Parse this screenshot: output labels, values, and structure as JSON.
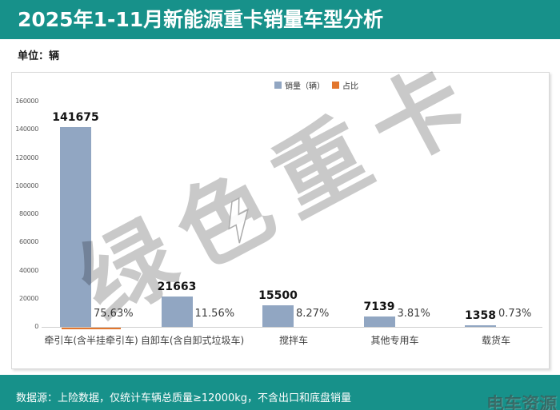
{
  "header": {
    "title": "2025年1-11月新能源重卡销量车型分析"
  },
  "unit_label": "单位：辆",
  "colors": {
    "teal": "#17918A",
    "bar_blue": "#91A6C2",
    "orange": "#E2762D",
    "watermark_gray": "rgba(0,0,0,0.21)"
  },
  "legend": {
    "items": [
      {
        "label": "销量（辆）",
        "color": "#91A6C2"
      },
      {
        "label": "占比",
        "color": "#E2762D"
      }
    ]
  },
  "chart_data": {
    "type": "bar",
    "title": "",
    "categories": [
      "牵引车(含半挂牵引车)",
      "自卸车(含自卸式垃圾车)",
      "搅拌车",
      "其他专用车",
      "载货车"
    ],
    "series": [
      {
        "name": "销量（辆）",
        "values": [
          141675,
          21663,
          15500,
          7139,
          1358
        ]
      },
      {
        "name": "占比",
        "values": [
          "75.63%",
          "11.56%",
          "8.27%",
          "3.81%",
          "0.73%"
        ]
      }
    ],
    "ylim": [
      0,
      160000
    ],
    "y_ticks": [
      0,
      20000,
      40000,
      60000,
      80000,
      100000,
      120000,
      140000,
      160000
    ],
    "grid": "off",
    "legend_position": "top-center"
  },
  "watermark": {
    "text": "绿色重卡",
    "bolt": "lightning-bolt"
  },
  "footer": {
    "source": "数据源：上险数据，仅统计车辆总质量≥12000kg，不含出口和底盘销量",
    "logo": "电车资源"
  }
}
